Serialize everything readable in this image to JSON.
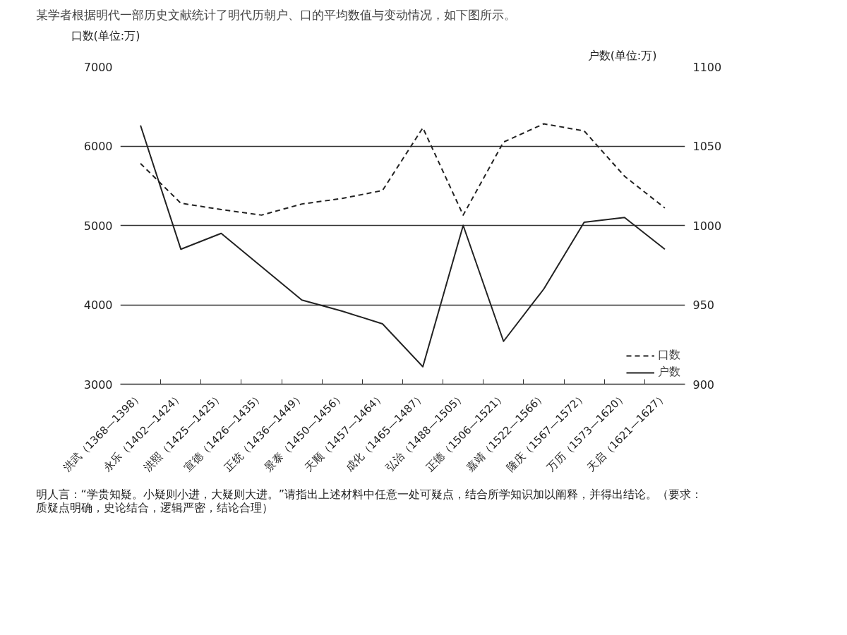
{
  "chart_data": {
    "type": "line",
    "title": "某学者根据明代一部历史文献统计了明代历朝户、口的平均数值与变动情况，如下图所示。",
    "ylabel": "口数(单位:万)",
    "y2label": "户数(单位:万)",
    "categories": [
      "洪武（1368—1398）",
      "永乐（1402—1424）",
      "洪熙（1425—1425）",
      "宣德（1426—1435）",
      "正统（1436—1449）",
      "景泰（1450—1456）",
      "天顺（1457—1464）",
      "成化（1465—1487）",
      "弘治（1488—1505）",
      "正德（1506—1521）",
      "嘉靖（1522—1566）",
      "隆庆（1567—1572）",
      "万历（1573—1620）",
      "天启（1621—1627）"
    ],
    "series": [
      {
        "name": "口数",
        "color": "#222222",
        "line_style": "dashed",
        "values": [
          5780,
          5280,
          5200,
          5130,
          5270,
          5340,
          5440,
          6230,
          5130,
          6050,
          6280,
          6190,
          5620,
          5220
        ]
      },
      {
        "name": "户数",
        "color": "#222222",
        "line_style": "solid",
        "axis": "y2",
        "values": [
          1063,
          985,
          995,
          974,
          953,
          946,
          938,
          911,
          1000,
          927,
          960,
          1002,
          1005,
          985
        ]
      }
    ],
    "ylim": [
      3000,
      7000
    ],
    "yticks": [
      3000,
      4000,
      5000,
      6000,
      7000
    ],
    "y2lim": [
      900,
      1100
    ],
    "y2ticks": [
      900,
      950,
      1000,
      1050,
      1100
    ],
    "grid": "y",
    "legend": "bottom right",
    "annotations": [
      "明人言：“学贵知疑。小疑则小进，大疑则大进。”请指出上述材料中任意一处可疑点，结合所学知识加以阐释，并得出结论。（要求：质疑点明确，史论结合，逻辑严密，结论合理）"
    ]
  }
}
